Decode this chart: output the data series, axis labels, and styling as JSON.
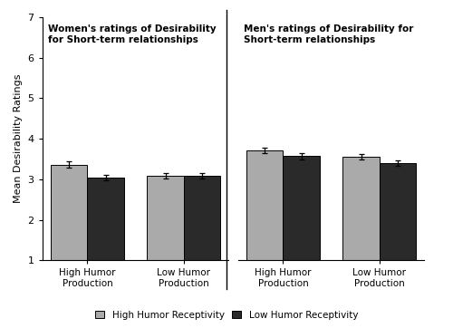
{
  "left_title": "Women's ratings of Desirability\nfor Short-term relationships",
  "right_title": "Men's ratings of Desirability for\nShort-term relationships",
  "ylabel": "Mean Desirability Ratings",
  "ylim": [
    1,
    7
  ],
  "yticks": [
    1,
    2,
    3,
    4,
    5,
    6,
    7
  ],
  "categories": [
    "High Humor\nProduction",
    "Low Humor\nProduction"
  ],
  "women_high_hr": [
    3.36,
    3.08
  ],
  "women_low_hr": [
    3.05,
    3.08
  ],
  "women_high_hr_err": [
    0.08,
    0.07
  ],
  "women_low_hr_err": [
    0.07,
    0.07
  ],
  "men_high_hr": [
    3.72,
    3.55
  ],
  "men_low_hr": [
    3.57,
    3.4
  ],
  "men_high_hr_err": [
    0.07,
    0.07
  ],
  "men_low_hr_err": [
    0.07,
    0.07
  ],
  "color_high_hr": "#aaaaaa",
  "color_low_hr": "#2a2a2a",
  "legend_labels": [
    "High Humor Receptivity",
    "Low Humor Receptivity"
  ],
  "bar_width": 0.38,
  "background_color": "#ffffff"
}
